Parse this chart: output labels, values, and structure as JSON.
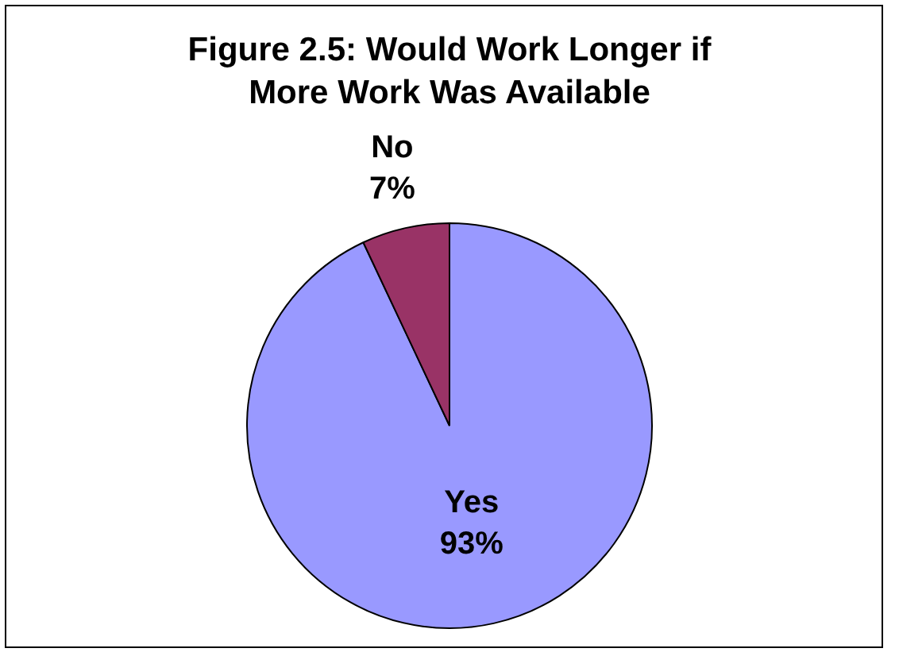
{
  "chart_data": {
    "type": "pie",
    "title": "Figure 2.5: Would Work Longer if More Work Was Available",
    "categories": [
      "Yes",
      "No"
    ],
    "values": [
      93,
      7
    ],
    "colors": [
      "#9999ff",
      "#993366"
    ],
    "value_labels": [
      "93%",
      "7%"
    ],
    "legend": false
  }
}
